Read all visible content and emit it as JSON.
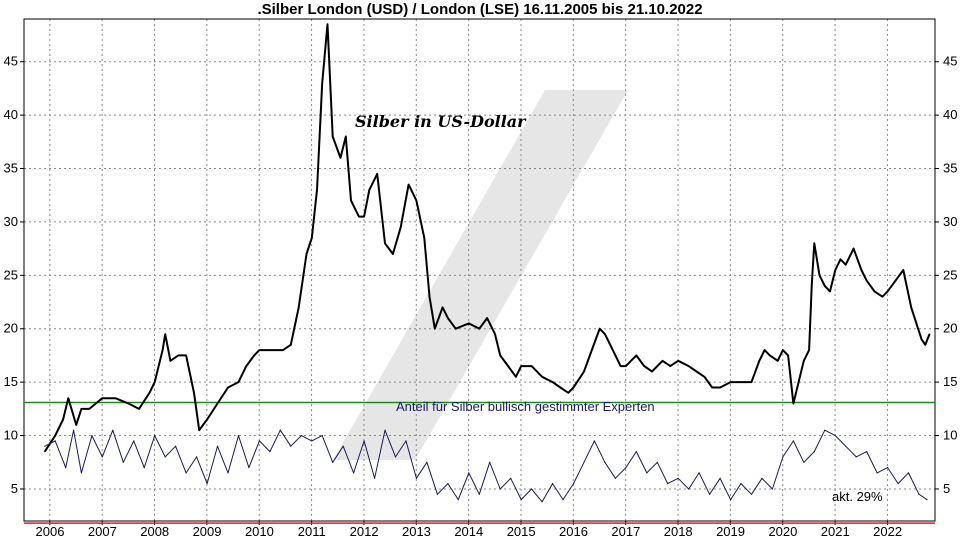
{
  "chart_data": {
    "type": "line",
    "title": ".Silber London (USD) / London (LSE) 16.11.2005 bis 21.10.2022",
    "subtitle": "Silber in US-Dollar",
    "annotation_sentiment": "Anteil für Silber bullisch gestimmter Experten",
    "annotation_current": "akt. 29%",
    "x_ticks": [
      "2006",
      "2007",
      "2008",
      "2009",
      "2010",
      "2011",
      "2012",
      "2013",
      "2014",
      "2015",
      "2016",
      "2017",
      "2018",
      "2019",
      "2020",
      "2021",
      "2022"
    ],
    "y_ticks": [
      "5",
      "10",
      "15",
      "20",
      "25",
      "30",
      "35",
      "40",
      "45"
    ],
    "ylim": [
      2,
      49
    ],
    "grid": true,
    "colors": {
      "price": "#000000",
      "sentiment": "#1a1a5e",
      "green_line": "#1a8a1a",
      "red_line": "#e02020",
      "annotation_text": "#1a1a6e",
      "watermark": "#e6e6e6"
    },
    "reference_lines": [
      {
        "name": "green-reference-line",
        "value": 13.1
      },
      {
        "name": "red-reference-line",
        "value": 1.8
      }
    ],
    "series": [
      {
        "name": "Silber in US-Dollar",
        "x": [
          2005.9,
          2006.1,
          2006.25,
          2006.35,
          2006.5,
          2006.6,
          2006.75,
          2007.0,
          2007.25,
          2007.5,
          2007.7,
          2007.9,
          2008.0,
          2008.15,
          2008.2,
          2008.3,
          2008.45,
          2008.6,
          2008.75,
          2008.85,
          2009.0,
          2009.2,
          2009.4,
          2009.6,
          2009.75,
          2009.9,
          2010.0,
          2010.2,
          2010.45,
          2010.6,
          2010.75,
          2010.9,
          2011.0,
          2011.1,
          2011.2,
          2011.3,
          2011.4,
          2011.55,
          2011.65,
          2011.75,
          2011.9,
          2012.0,
          2012.1,
          2012.25,
          2012.4,
          2012.55,
          2012.7,
          2012.85,
          2013.0,
          2013.15,
          2013.25,
          2013.35,
          2013.5,
          2013.6,
          2013.75,
          2014.0,
          2014.2,
          2014.35,
          2014.5,
          2014.6,
          2014.75,
          2014.9,
          2015.0,
          2015.2,
          2015.4,
          2015.6,
          2015.75,
          2015.9,
          2016.0,
          2016.2,
          2016.35,
          2016.5,
          2016.6,
          2016.75,
          2016.9,
          2017.0,
          2017.2,
          2017.35,
          2017.5,
          2017.7,
          2017.85,
          2018.0,
          2018.2,
          2018.35,
          2018.5,
          2018.65,
          2018.8,
          2019.0,
          2019.2,
          2019.4,
          2019.55,
          2019.65,
          2019.75,
          2019.9,
          2020.0,
          2020.1,
          2020.2,
          2020.3,
          2020.4,
          2020.5,
          2020.55,
          2020.6,
          2020.7,
          2020.8,
          2020.9,
          2021.0,
          2021.1,
          2021.2,
          2021.35,
          2021.5,
          2021.6,
          2021.75,
          2021.9,
          2022.0,
          2022.15,
          2022.3,
          2022.45,
          2022.55,
          2022.65,
          2022.72,
          2022.8
        ],
        "values": [
          8.5,
          10.0,
          11.5,
          13.5,
          11.0,
          12.5,
          12.5,
          13.5,
          13.5,
          13.0,
          12.5,
          14.0,
          15.0,
          18.0,
          19.5,
          17.0,
          17.5,
          17.5,
          14.0,
          10.5,
          11.5,
          13.0,
          14.5,
          15.0,
          16.5,
          17.5,
          18.0,
          18.0,
          18.0,
          18.5,
          22.0,
          27.0,
          28.5,
          33.0,
          43.0,
          48.5,
          38.0,
          36.0,
          38.0,
          32.0,
          30.5,
          30.5,
          33.0,
          34.5,
          28.0,
          27.0,
          29.5,
          33.5,
          32.0,
          28.5,
          23.0,
          20.0,
          22.0,
          21.0,
          20.0,
          20.5,
          20.0,
          21.0,
          19.5,
          17.5,
          16.5,
          15.5,
          16.5,
          16.5,
          15.5,
          15.0,
          14.5,
          14.0,
          14.5,
          16.0,
          18.0,
          20.0,
          19.5,
          18.0,
          16.5,
          16.5,
          17.5,
          16.5,
          16.0,
          17.0,
          16.5,
          17.0,
          16.5,
          16.0,
          15.5,
          14.5,
          14.5,
          15.0,
          15.0,
          15.0,
          17.0,
          18.0,
          17.5,
          17.0,
          18.0,
          17.5,
          13.0,
          15.0,
          17.0,
          18.0,
          24.0,
          28.0,
          25.0,
          24.0,
          23.5,
          25.5,
          26.5,
          26.0,
          27.5,
          25.5,
          24.5,
          23.5,
          23.0,
          23.5,
          24.5,
          25.5,
          22.0,
          20.5,
          19.0,
          18.5,
          19.5
        ]
      },
      {
        "name": "Anteil für Silber bullisch gestimmter Experten",
        "x": [
          2005.9,
          2006.1,
          2006.3,
          2006.45,
          2006.6,
          2006.8,
          2007.0,
          2007.2,
          2007.4,
          2007.6,
          2007.8,
          2008.0,
          2008.2,
          2008.4,
          2008.6,
          2008.8,
          2009.0,
          2009.2,
          2009.4,
          2009.6,
          2009.8,
          2010.0,
          2010.2,
          2010.4,
          2010.6,
          2010.8,
          2011.0,
          2011.2,
          2011.4,
          2011.6,
          2011.8,
          2012.0,
          2012.2,
          2012.4,
          2012.6,
          2012.8,
          2013.0,
          2013.2,
          2013.4,
          2013.6,
          2013.8,
          2014.0,
          2014.2,
          2014.4,
          2014.6,
          2014.8,
          2015.0,
          2015.2,
          2015.4,
          2015.6,
          2015.8,
          2016.0,
          2016.2,
          2016.4,
          2016.6,
          2016.8,
          2017.0,
          2017.2,
          2017.4,
          2017.6,
          2017.8,
          2018.0,
          2018.2,
          2018.4,
          2018.6,
          2018.8,
          2019.0,
          2019.2,
          2019.4,
          2019.6,
          2019.8,
          2020.0,
          2020.2,
          2020.4,
          2020.6,
          2020.8,
          2021.0,
          2021.2,
          2021.4,
          2021.6,
          2021.8,
          2022.0,
          2022.2,
          2022.4,
          2022.6,
          2022.75
        ],
        "values": [
          9.0,
          9.5,
          7.0,
          10.5,
          6.5,
          10.0,
          8.0,
          10.5,
          7.5,
          9.5,
          7.0,
          10.0,
          8.0,
          9.0,
          6.5,
          8.0,
          5.5,
          9.0,
          6.5,
          10.0,
          7.0,
          9.5,
          8.5,
          10.5,
          9.0,
          10.0,
          9.5,
          10.0,
          7.5,
          9.0,
          6.5,
          9.5,
          6.0,
          10.5,
          8.0,
          9.5,
          6.0,
          7.5,
          4.5,
          5.5,
          4.0,
          6.5,
          4.5,
          7.5,
          5.0,
          6.0,
          4.0,
          5.0,
          3.8,
          5.5,
          4.0,
          5.5,
          7.5,
          9.5,
          7.5,
          6.0,
          7.0,
          8.5,
          6.5,
          7.5,
          5.5,
          6.0,
          5.0,
          6.5,
          4.5,
          6.0,
          4.0,
          5.5,
          4.5,
          6.0,
          5.0,
          8.0,
          9.5,
          7.5,
          8.5,
          10.5,
          10.0,
          9.0,
          8.0,
          8.5,
          6.5,
          7.0,
          5.5,
          6.5,
          4.5,
          4.0
        ]
      }
    ]
  }
}
